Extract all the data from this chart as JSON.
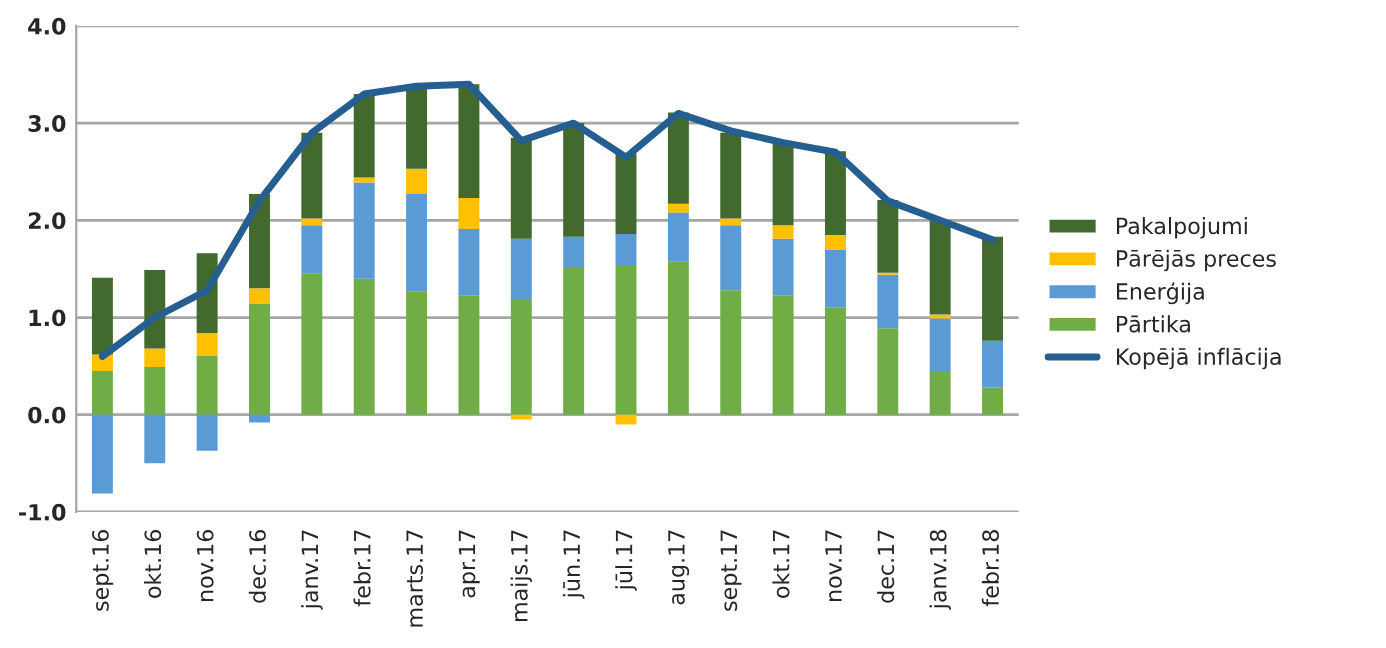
{
  "chart_data": {
    "type": "bar",
    "stacked": true,
    "categories": [
      "sept.16",
      "okt.16",
      "nov.16",
      "dec.16",
      "janv.17",
      "febr.17",
      "marts.17",
      "apr.17",
      "maijs.17",
      "jūn.17",
      "jūl.17",
      "aug.17",
      "sept.17",
      "okt.17",
      "nov.17",
      "dec.17",
      "janv.18",
      "febr.18"
    ],
    "series": [
      {
        "name": "Pārtika",
        "color": "#70ad47",
        "values": [
          0.45,
          0.49,
          0.61,
          1.14,
          1.45,
          1.4,
          1.27,
          1.23,
          1.19,
          1.52,
          1.54,
          1.58,
          1.28,
          1.23,
          1.1,
          0.89,
          0.45,
          0.28
        ]
      },
      {
        "name": "Enerģija",
        "color": "#5b9bd5",
        "values": [
          -0.81,
          -0.5,
          -0.37,
          -0.08,
          0.5,
          0.99,
          1.0,
          0.68,
          0.62,
          0.31,
          0.32,
          0.5,
          0.67,
          0.58,
          0.6,
          0.55,
          0.54,
          0.48
        ]
      },
      {
        "name": "Pārējās preces",
        "color": "#ffc000",
        "values": [
          0.17,
          0.19,
          0.23,
          0.16,
          0.07,
          0.05,
          0.26,
          0.32,
          -0.05,
          0,
          -0.1,
          0.09,
          0.07,
          0.14,
          0.15,
          0.02,
          0.04,
          0
        ]
      },
      {
        "name": "Pakalpojumi",
        "color": "#426a2e",
        "values": [
          0.79,
          0.81,
          0.82,
          0.97,
          0.88,
          0.86,
          0.85,
          1.17,
          1.04,
          1.17,
          0.83,
          0.94,
          0.88,
          0.86,
          0.86,
          0.75,
          0.97,
          1.07
        ]
      },
      {
        "name": "Kopējā inflācija",
        "type": "line",
        "color": "#255e91",
        "values": [
          0.6,
          1.0,
          1.28,
          2.2,
          2.9,
          3.3,
          3.38,
          3.4,
          2.82,
          3.0,
          2.65,
          3.1,
          2.92,
          2.8,
          2.7,
          2.2,
          2.0,
          1.8
        ]
      }
    ],
    "ylim": [
      -1.0,
      4.0
    ],
    "yticks": [
      {
        "value": -1.0,
        "label": "-1.0"
      },
      {
        "value": 0.0,
        "label": "0.0"
      },
      {
        "value": 1.0,
        "label": "1.0"
      },
      {
        "value": 2.0,
        "label": "2.0"
      },
      {
        "value": 3.0,
        "label": "3.0"
      },
      {
        "value": 4.0,
        "label": "4.0"
      }
    ],
    "grid": "y",
    "legend": "right"
  }
}
